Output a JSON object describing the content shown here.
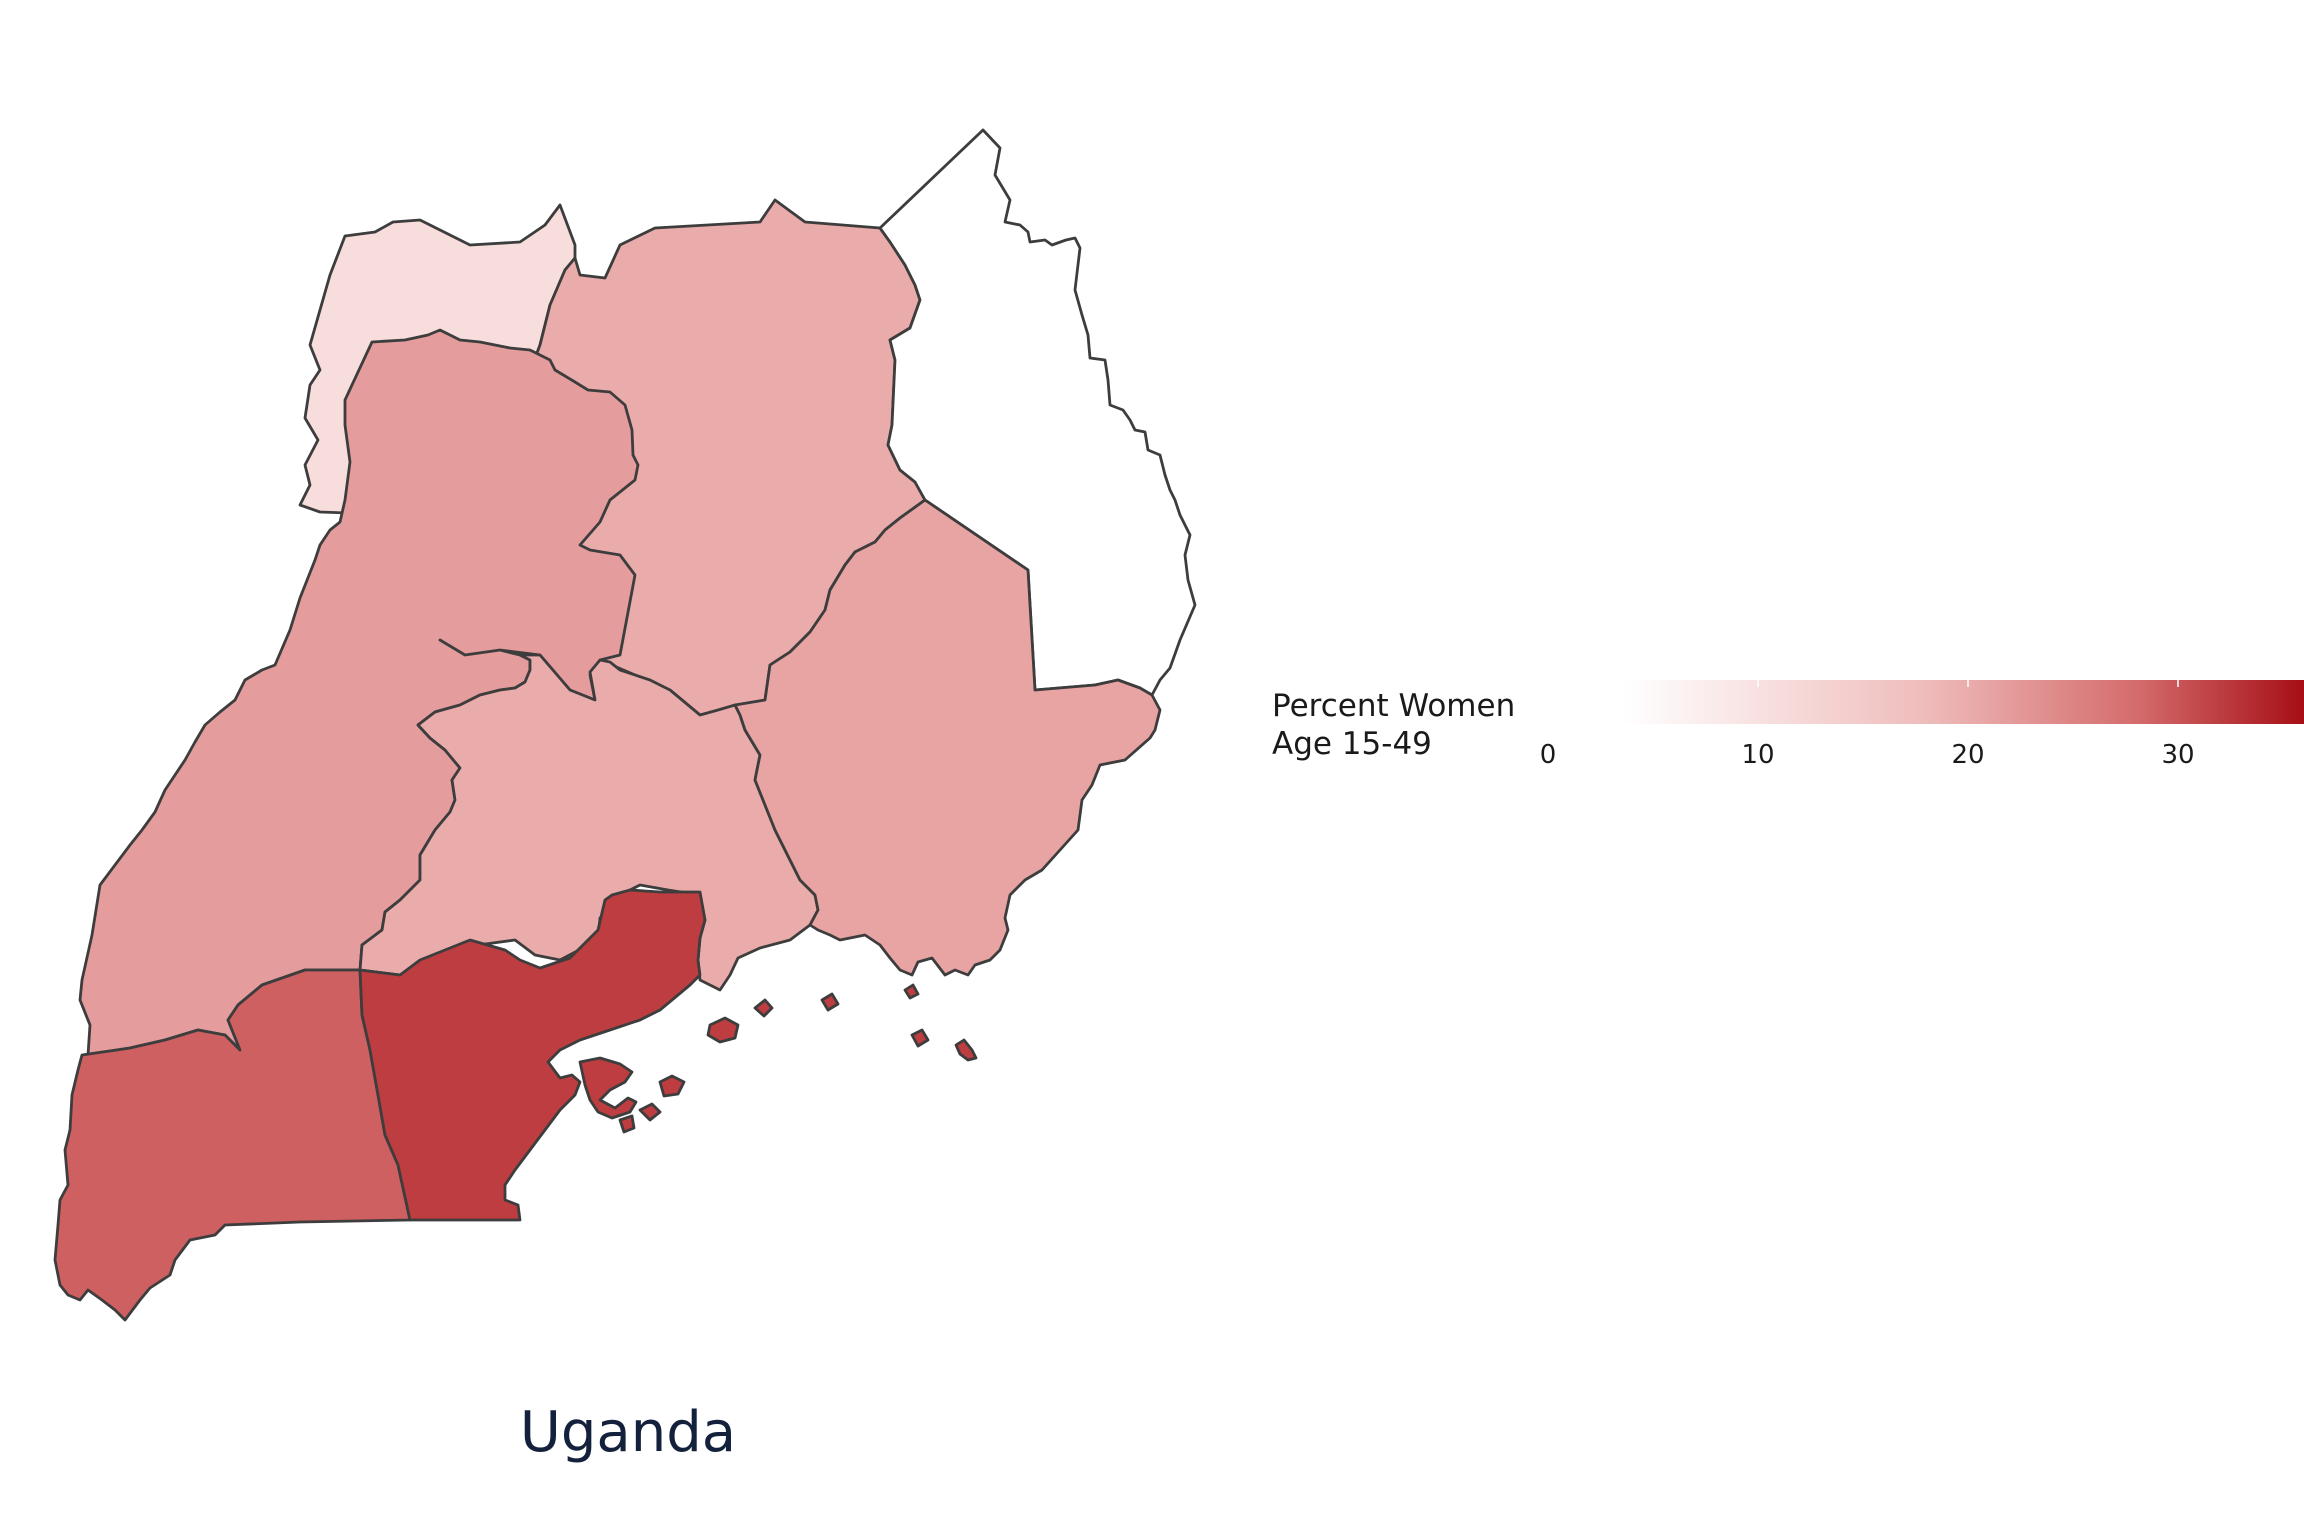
{
  "title": "Uganda",
  "legend": {
    "title_line1": "Percent Women",
    "title_line2": "Age 15-49",
    "min": 0,
    "max": 36,
    "ticks": [
      {
        "value": 0,
        "label": "0"
      },
      {
        "value": 10,
        "label": "10"
      },
      {
        "value": 20,
        "label": "20"
      },
      {
        "value": 30,
        "label": "30"
      }
    ],
    "color_low": "#ffffff",
    "color_high": "#a50f15"
  },
  "regions": [
    {
      "id": "west-nile",
      "value": 11
    },
    {
      "id": "northern",
      "value": 20
    },
    {
      "id": "karamoja",
      "value": 1
    },
    {
      "id": "mid-western",
      "value": 22
    },
    {
      "id": "central",
      "value": 20
    },
    {
      "id": "eastern",
      "value": 21
    },
    {
      "id": "southwest",
      "value": 29
    },
    {
      "id": "south-central",
      "value": 32
    }
  ]
}
